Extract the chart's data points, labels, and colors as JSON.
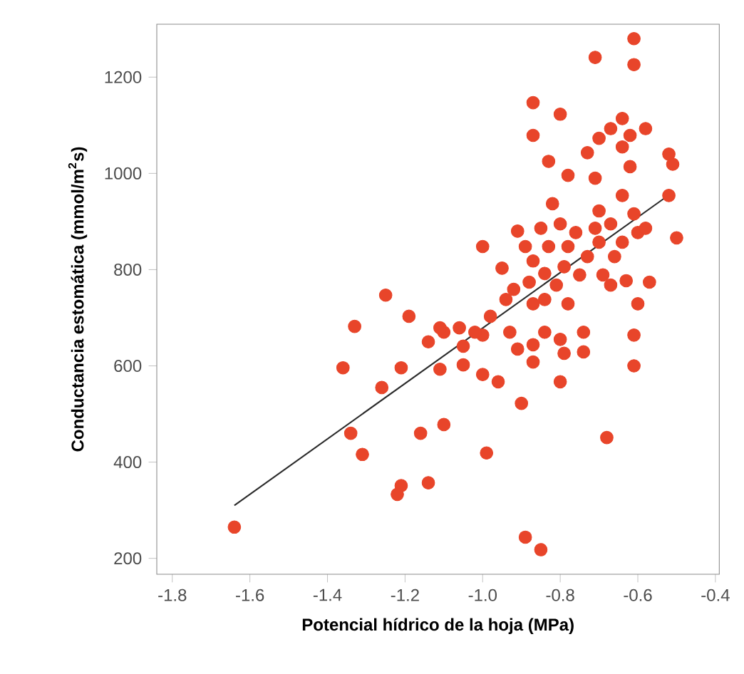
{
  "chart_data": {
    "type": "scatter",
    "xlabel": "Potencial hídrico de la hoja (MPa)",
    "ylabel": "Conductancia estomática (mmol/m$^{2}$s)",
    "xlim": [
      -1.84,
      -0.39
    ],
    "ylim": [
      167,
      1310
    ],
    "xticks": [
      {
        "value": -1.8,
        "label": "-1.8"
      },
      {
        "value": -1.6,
        "label": "-1.6"
      },
      {
        "value": -1.4,
        "label": "-1.4"
      },
      {
        "value": -1.2,
        "label": "-1.2"
      },
      {
        "value": -1.0,
        "label": "-1.0"
      },
      {
        "value": -0.8,
        "label": "-0.8"
      },
      {
        "value": -0.6,
        "label": "-0.6"
      },
      {
        "value": -0.4,
        "label": "-0.4"
      }
    ],
    "yticks": [
      200,
      400,
      600,
      800,
      1000,
      1200
    ],
    "grid": false,
    "series": [
      {
        "color": "#e8452a",
        "marker": "circle",
        "x": [
          -1.64,
          -1.36,
          -1.34,
          -1.31,
          -1.26,
          -1.21,
          -1.21,
          -1.22,
          -1.16,
          -1.14,
          -1.14,
          -1.1,
          -1.11,
          -1.1,
          -1.05,
          -1.05,
          -1.0,
          -1.0,
          -0.99,
          -0.96,
          -0.93,
          -0.91,
          -0.9,
          -0.89,
          -0.85,
          -0.87,
          -0.8,
          -0.8,
          -0.74,
          -0.68,
          -0.61,
          -0.61,
          -1.25,
          -1.19,
          -1.33,
          -1.11,
          -1.06,
          -1.0,
          -1.02,
          -0.98,
          -0.95,
          -0.94,
          -0.92,
          -0.91,
          -0.89,
          -0.87,
          -0.88,
          -0.87,
          -0.85,
          -0.84,
          -0.82,
          -0.83,
          -0.81,
          -0.8,
          -0.79,
          -0.78,
          -0.78,
          -0.76,
          -0.75,
          -0.73,
          -0.71,
          -0.7,
          -0.7,
          -0.69,
          -0.67,
          -0.67,
          -0.66,
          -0.64,
          -0.64,
          -0.63,
          -0.61,
          -0.6,
          -0.58,
          -0.57,
          -0.6,
          -0.5,
          -0.52,
          -0.87,
          -0.87,
          -0.8,
          -0.83,
          -0.78,
          -0.71,
          -0.71,
          -0.73,
          -0.7,
          -0.67,
          -0.64,
          -0.62,
          -0.62,
          -0.64,
          -0.61,
          -0.61,
          -0.58,
          -0.52,
          -0.51,
          -0.84,
          -0.84,
          -0.74,
          -0.79,
          -0.87
        ],
        "values": [
          265,
          596,
          460,
          416,
          555,
          596,
          351,
          333,
          460,
          650,
          357,
          478,
          593,
          670,
          602,
          641,
          582,
          664,
          419,
          567,
          670,
          635,
          522,
          244,
          218,
          608,
          567,
          655,
          629,
          451,
          600,
          664,
          747,
          703,
          682,
          679,
          679,
          848,
          670,
          703,
          803,
          738,
          759,
          880,
          848,
          818,
          774,
          729,
          886,
          792,
          937,
          848,
          768,
          895,
          806,
          848,
          729,
          877,
          789,
          827,
          886,
          922,
          857,
          789,
          768,
          895,
          827,
          954,
          857,
          777,
          916,
          877,
          886,
          774,
          729,
          866,
          954,
          1147,
          1079,
          1123,
          1025,
          996,
          1241,
          990,
          1043,
          1073,
          1093,
          1114,
          1079,
          1014,
          1055,
          1280,
          1226,
          1093,
          1040,
          1019,
          738,
          670,
          670,
          626,
          644
        ]
      },
      {
        "type": "line",
        "color": "#2b2b2b",
        "marker": "none",
        "x": [
          -1.64,
          -0.52
        ],
        "values": [
          310,
          955
        ]
      }
    ]
  }
}
